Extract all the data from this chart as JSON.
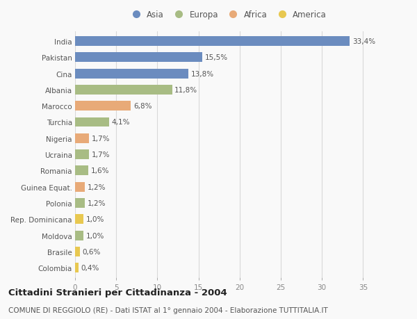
{
  "categories": [
    "India",
    "Pakistan",
    "Cina",
    "Albania",
    "Marocco",
    "Turchia",
    "Nigeria",
    "Ucraina",
    "Romania",
    "Guinea Equat.",
    "Polonia",
    "Rep. Dominicana",
    "Moldova",
    "Brasile",
    "Colombia"
  ],
  "values": [
    33.4,
    15.5,
    13.8,
    11.8,
    6.8,
    4.1,
    1.7,
    1.7,
    1.6,
    1.2,
    1.2,
    1.0,
    1.0,
    0.6,
    0.4
  ],
  "labels": [
    "33,4%",
    "15,5%",
    "13,8%",
    "11,8%",
    "6,8%",
    "4,1%",
    "1,7%",
    "1,7%",
    "1,6%",
    "1,2%",
    "1,2%",
    "1,0%",
    "1,0%",
    "0,6%",
    "0,4%"
  ],
  "continents": [
    "Asia",
    "Asia",
    "Asia",
    "Europa",
    "Africa",
    "Europa",
    "Africa",
    "Europa",
    "Europa",
    "Africa",
    "Europa",
    "America",
    "Europa",
    "America",
    "America"
  ],
  "continent_colors": {
    "Asia": "#6b8cbf",
    "Europa": "#a8bc84",
    "Africa": "#e8aa78",
    "America": "#e8c850"
  },
  "legend_order": [
    "Asia",
    "Europa",
    "Africa",
    "America"
  ],
  "xlim": [
    0,
    37
  ],
  "xticks": [
    0,
    5,
    10,
    15,
    20,
    25,
    30,
    35
  ],
  "title": "Cittadini Stranieri per Cittadinanza - 2004",
  "subtitle": "COMUNE DI REGGIOLO (RE) - Dati ISTAT al 1° gennaio 2004 - Elaborazione TUTTITALIA.IT",
  "background_color": "#f9f9f9",
  "bar_height": 0.6,
  "grid_color": "#d8d8d8",
  "label_fontsize": 7.5,
  "ylabel_fontsize": 7.5,
  "title_fontsize": 9.5,
  "subtitle_fontsize": 7.5
}
